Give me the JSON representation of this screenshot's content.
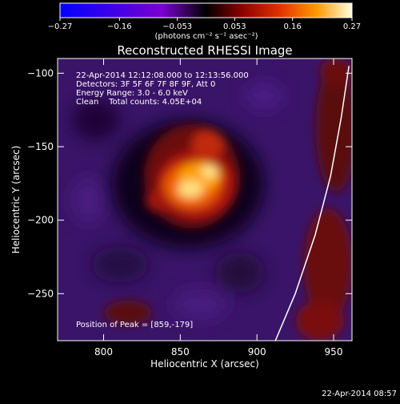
{
  "chart_data": {
    "type": "heatmap",
    "title": "Reconstructed RHESSI Image",
    "xlabel": "Heliocentric X (arcsec)",
    "ylabel": "Heliocentric Y (arcsec)",
    "xlim": [
      770,
      962
    ],
    "ylim": [
      -282,
      -90
    ],
    "x_ticks": [
      800,
      850,
      900,
      950
    ],
    "y_ticks": [
      -100,
      -150,
      -200,
      -250
    ],
    "x_tick_labels": [
      "800",
      "850",
      "900",
      "950"
    ],
    "y_tick_labels": [
      "−100",
      "−150",
      "−200",
      "−250"
    ],
    "colorbar": {
      "range": [
        -0.27,
        0.27
      ],
      "ticks": [
        -0.27,
        -0.16,
        -0.053,
        0.053,
        0.16,
        0.27
      ],
      "tick_labels": [
        "−0.27",
        "−0.16",
        "−0.053",
        "0.053",
        "0.16",
        "0.27"
      ],
      "unit_label": "(photons cm⁻² s⁻¹ asec⁻²)"
    },
    "annotations": [
      "22-Apr-2014 12:12:08.000 to 12:13:56.000",
      "Detectors: 3F 5F 6F 7F 8F 9F, Att 0",
      "Energy Range: 3.0 - 6.0 keV",
      "Clean    Total counts: 4.05E+04"
    ],
    "peak_label": "Position of Peak = [859,-179]",
    "peak": [
      859,
      -179
    ],
    "limb_curve": [
      [
        912,
        -282
      ],
      [
        925,
        -250
      ],
      [
        938,
        -210
      ],
      [
        948,
        -170
      ],
      [
        955,
        -130
      ],
      [
        960,
        -95
      ]
    ]
  },
  "footer_timestamp": "22-Apr-2014 08:57"
}
